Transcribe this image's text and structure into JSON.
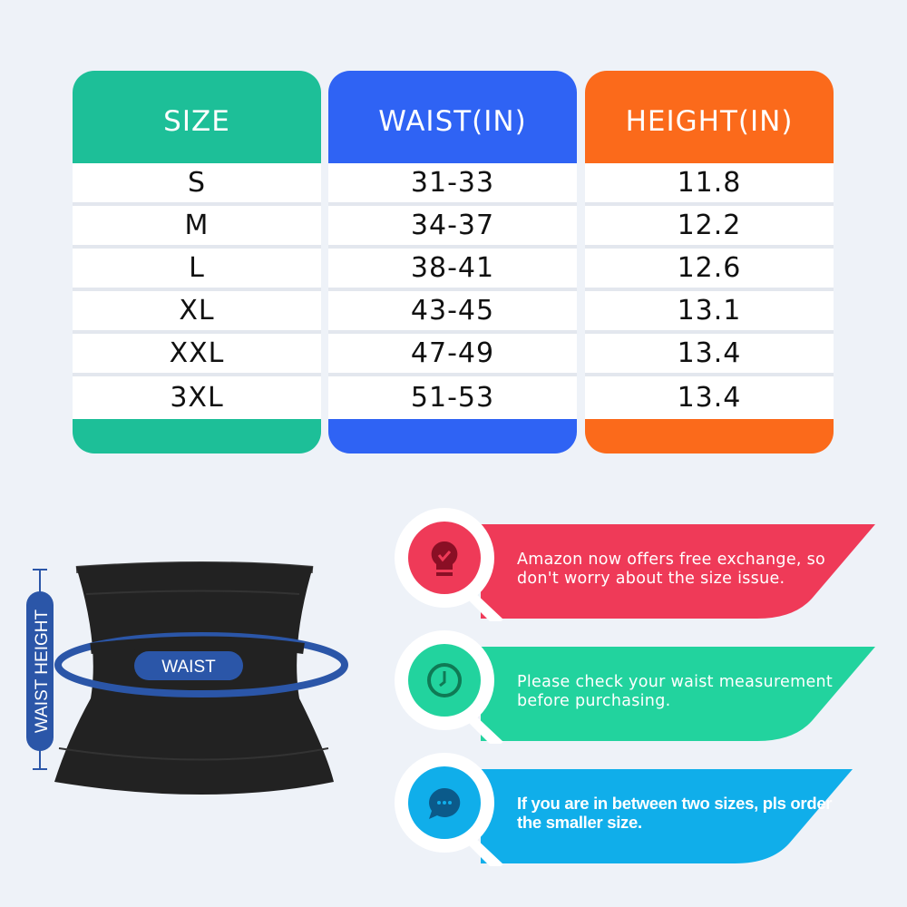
{
  "size_chart": {
    "columns": [
      {
        "header": "SIZE",
        "color": "#1dbf98",
        "values": [
          "S",
          "M",
          "L",
          "XL",
          "XXL",
          "3XL"
        ]
      },
      {
        "header": "WAIST(IN)",
        "color": "#2f63f4",
        "values": [
          "31-33",
          "34-37",
          "38-41",
          "43-45",
          "47-49",
          "51-53"
        ]
      },
      {
        "header": "HEIGHT(IN)",
        "color": "#fb6a1b",
        "values": [
          "11.8",
          "12.2",
          "12.6",
          "13.1",
          "13.4",
          "13.4"
        ]
      }
    ]
  },
  "diagram": {
    "waist_label": "WAIST",
    "waist_height_label": "WAIST HEIGHT",
    "accent": "#2b56a8"
  },
  "tips": [
    {
      "icon": "lightbulb-check-icon",
      "color": "#ef3a58",
      "dark": "#8a0f25",
      "lines": [
        "Amazon now offers free exchange, so",
        "don't worry about the size issue."
      ]
    },
    {
      "icon": "clock-icon",
      "color": "#22d39e",
      "dark": "#0f7a55",
      "lines": [
        "Please check your waist measurement",
        "before purchasing."
      ]
    },
    {
      "icon": "chat-bubble-icon",
      "color": "#10aeea",
      "dark": "#0b5a8a",
      "lines": [
        "If you are in between two sizes, pls order",
        "the smaller size."
      ]
    }
  ]
}
